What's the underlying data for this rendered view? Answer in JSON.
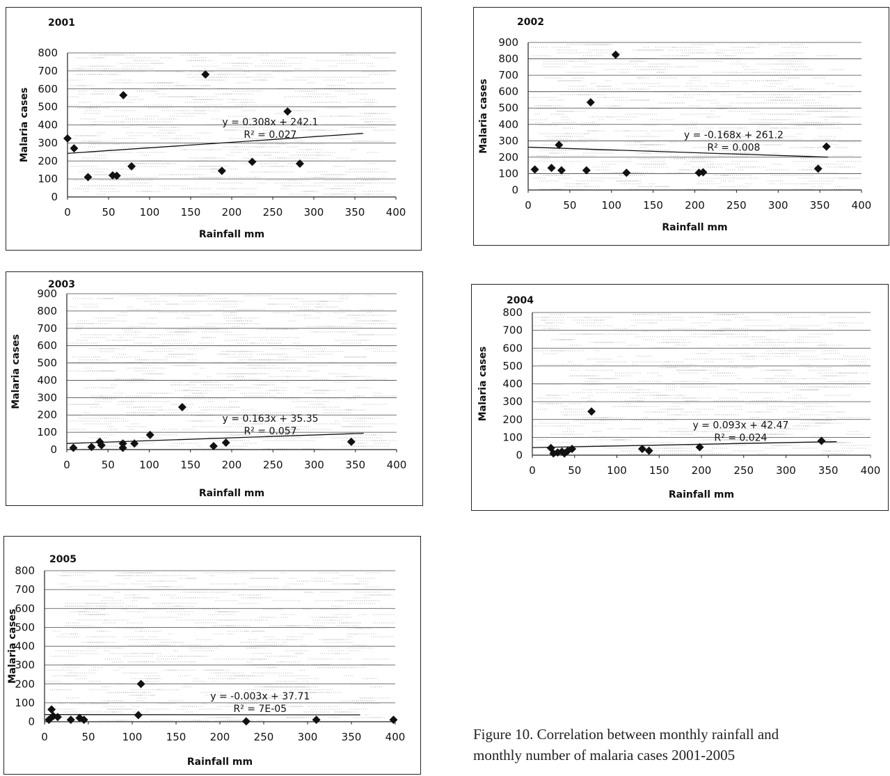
{
  "chart_data": [
    {
      "type": "scatter",
      "title": "2001",
      "xlabel": "Rainfall mm",
      "ylabel": "Malaria cases",
      "xlim": [
        0,
        400
      ],
      "ylim": [
        0,
        800
      ],
      "xticks": [
        "0",
        "50",
        "100",
        "150",
        "200",
        "250",
        "300",
        "350",
        "400"
      ],
      "yticks": [
        "0",
        "100",
        "200",
        "300",
        "400",
        "500",
        "600",
        "700",
        "800"
      ],
      "grid": true,
      "points": [
        [
          0,
          325
        ],
        [
          8,
          270
        ],
        [
          25,
          110
        ],
        [
          55,
          120
        ],
        [
          60,
          118
        ],
        [
          68,
          565
        ],
        [
          78,
          170
        ],
        [
          168,
          680
        ],
        [
          188,
          145
        ],
        [
          225,
          195
        ],
        [
          268,
          475
        ],
        [
          283,
          185
        ]
      ],
      "trendline": {
        "slope": 0.308,
        "intercept": 242.1,
        "equation": "y = 0.308x + 242.1",
        "r2": "R² = 0.027"
      },
      "series_color": "#111111"
    },
    {
      "type": "scatter",
      "title": "2002",
      "xlabel": "Rainfall mm",
      "ylabel": "Malaria cases",
      "xlim": [
        0,
        400
      ],
      "ylim": [
        0,
        900
      ],
      "xticks": [
        "0",
        "50",
        "100",
        "150",
        "200",
        "250",
        "300",
        "350",
        "400"
      ],
      "yticks": [
        "0",
        "100",
        "200",
        "300",
        "400",
        "500",
        "600",
        "700",
        "800",
        "900"
      ],
      "grid": true,
      "points": [
        [
          8,
          125
        ],
        [
          28,
          135
        ],
        [
          37,
          275
        ],
        [
          40,
          120
        ],
        [
          70,
          120
        ],
        [
          75,
          535
        ],
        [
          105,
          825
        ],
        [
          118,
          105
        ],
        [
          205,
          105
        ],
        [
          210,
          108
        ],
        [
          348,
          130
        ],
        [
          358,
          265
        ]
      ],
      "trendline": {
        "slope": -0.168,
        "intercept": 261.2,
        "equation": "y = -0.168x + 261.2",
        "r2": "R² = 0.008"
      },
      "series_color": "#111111"
    },
    {
      "type": "scatter",
      "title": "2003",
      "xlabel": "Rainfall mm",
      "ylabel": "Malaria cases",
      "xlim": [
        0,
        400
      ],
      "ylim": [
        0,
        900
      ],
      "xticks": [
        "0",
        "50",
        "100",
        "150",
        "200",
        "250",
        "300",
        "350",
        "400"
      ],
      "yticks": [
        "0",
        "100",
        "200",
        "300",
        "400",
        "500",
        "600",
        "700",
        "800",
        "900"
      ],
      "grid": true,
      "points": [
        [
          8,
          10
        ],
        [
          30,
          15
        ],
        [
          40,
          45
        ],
        [
          42,
          25
        ],
        [
          68,
          35
        ],
        [
          68,
          10
        ],
        [
          82,
          35
        ],
        [
          101,
          85
        ],
        [
          140,
          245
        ],
        [
          178,
          20
        ],
        [
          193,
          40
        ],
        [
          345,
          45
        ]
      ],
      "trendline": {
        "slope": 0.163,
        "intercept": 35.35,
        "equation": "y = 0.163x + 35.35",
        "r2": "R² = 0.057"
      },
      "series_color": "#111111"
    },
    {
      "type": "scatter",
      "title": "2004",
      "xlabel": "Rainfall mm",
      "ylabel": "Malaria cases",
      "xlim": [
        0,
        400
      ],
      "ylim": [
        0,
        800
      ],
      "xticks": [
        "0",
        "50",
        "100",
        "150",
        "200",
        "250",
        "300",
        "350",
        "400"
      ],
      "yticks": [
        "0",
        "100",
        "200",
        "300",
        "400",
        "500",
        "600",
        "700",
        "800"
      ],
      "grid": true,
      "points": [
        [
          22,
          40
        ],
        [
          25,
          10
        ],
        [
          30,
          15
        ],
        [
          35,
          20
        ],
        [
          38,
          10
        ],
        [
          42,
          25
        ],
        [
          47,
          35
        ],
        [
          70,
          245
        ],
        [
          130,
          35
        ],
        [
          138,
          25
        ],
        [
          198,
          45
        ],
        [
          342,
          80
        ]
      ],
      "trendline": {
        "slope": 0.093,
        "intercept": 42.47,
        "equation": "y = 0.093x + 42.47",
        "r2": "R² = 0.024"
      },
      "series_color": "#111111"
    },
    {
      "type": "scatter",
      "title": "2005",
      "xlabel": "Rainfall mm",
      "ylabel": "Malaria cases",
      "xlim": [
        0,
        400
      ],
      "ylim": [
        0,
        800
      ],
      "xticks": [
        "0",
        "50",
        "100",
        "150",
        "200",
        "250",
        "300",
        "350",
        "400"
      ],
      "yticks": [
        "0",
        "100",
        "200",
        "300",
        "400",
        "500",
        "600",
        "700",
        "800"
      ],
      "grid": true,
      "points": [
        [
          5,
          10
        ],
        [
          8,
          65
        ],
        [
          10,
          30
        ],
        [
          15,
          25
        ],
        [
          30,
          10
        ],
        [
          40,
          20
        ],
        [
          45,
          10
        ],
        [
          107,
          35
        ],
        [
          110,
          200
        ],
        [
          230,
          2
        ],
        [
          310,
          10
        ],
        [
          398,
          10
        ]
      ],
      "trendline": {
        "slope": -0.003,
        "intercept": 37.71,
        "equation": "y = -0.003x + 37.71",
        "r2": "R² = 7E-05"
      },
      "series_color": "#111111"
    }
  ],
  "caption": {
    "line1": "Figure 10. Correlation between monthly rainfall and",
    "line2": "monthly number of malaria cases 2001-2005"
  }
}
